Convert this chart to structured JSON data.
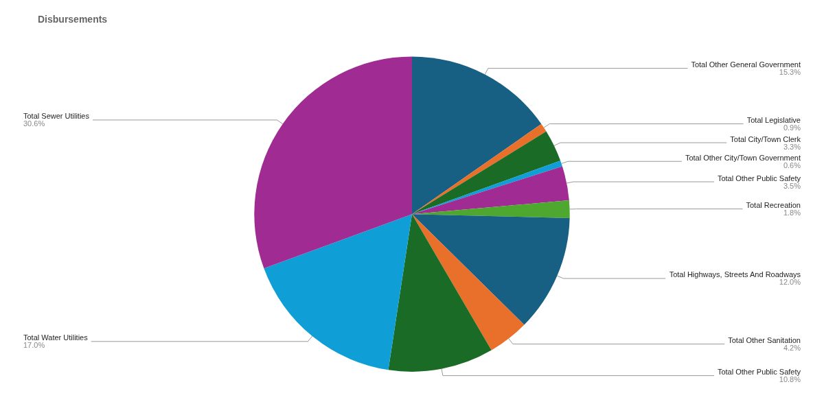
{
  "chart_data": {
    "type": "pie",
    "title": "Disbursements",
    "categories": [
      "Total Other General Government",
      "Total Legislative",
      "Total City/Town Clerk",
      "Total Other City/Town Government",
      "Total Other Public Safety",
      "Total Recreation",
      "Total Highways, Streets And Roadways",
      "Total Other Sanitation",
      "Total Other Public Safety",
      "Total Water Utilities",
      "Total Sewer Utilities"
    ],
    "values": [
      15.3,
      0.9,
      3.3,
      0.6,
      3.5,
      1.8,
      12.0,
      4.2,
      10.8,
      17.0,
      30.6
    ],
    "value_labels": [
      "15.3%",
      "0.9%",
      "3.3%",
      "0.6%",
      "3.5%",
      "1.8%",
      "12.0%",
      "4.2%",
      "10.8%",
      "17.0%",
      "30.6%"
    ],
    "colors": [
      "#175f83",
      "#e8702a",
      "#1a6b26",
      "#0f9ed5",
      "#9f2b93",
      "#4ea72e",
      "#175f83",
      "#e8702a",
      "#1a6b26",
      "#0f9ed5",
      "#9f2b93"
    ],
    "legend": false
  }
}
